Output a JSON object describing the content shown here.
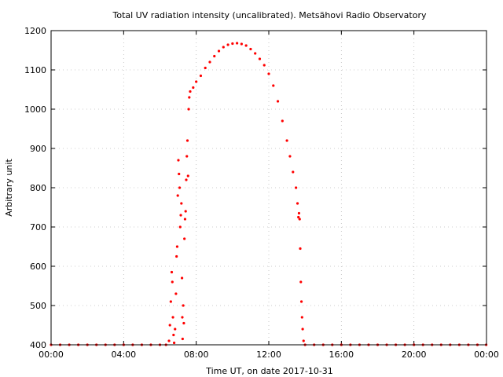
{
  "chart_data": {
    "type": "scatter",
    "title": "Total UV radiation intensity (uncalibrated). Metsähovi Radio Observatory",
    "xlabel": "Time UT, on date 2017-10-31",
    "ylabel": "Arbitrary unit",
    "xlim": [
      "00:00",
      "24:00"
    ],
    "ylim": [
      400,
      1200
    ],
    "x_ticks": [
      "00:00",
      "04:00",
      "08:00",
      "12:00",
      "16:00",
      "20:00",
      "00:00"
    ],
    "y_ticks": [
      400,
      500,
      600,
      700,
      800,
      900,
      1000,
      1100,
      1200
    ],
    "grid": true,
    "marker_color": "#ff0000",
    "series": [
      {
        "points": [
          [
            "00:00",
            400
          ],
          [
            "00:30",
            400
          ],
          [
            "01:00",
            400
          ],
          [
            "01:30",
            400
          ],
          [
            "02:00",
            400
          ],
          [
            "02:30",
            400
          ],
          [
            "03:00",
            400
          ],
          [
            "03:30",
            400
          ],
          [
            "04:00",
            400
          ],
          [
            "04:30",
            400
          ],
          [
            "05:00",
            400
          ],
          [
            "05:30",
            400
          ],
          [
            "06:00",
            400
          ],
          [
            "06:20",
            400
          ],
          [
            "06:30",
            410
          ],
          [
            "06:33",
            450
          ],
          [
            "06:36",
            510
          ],
          [
            "06:39",
            585
          ],
          [
            "06:41",
            560
          ],
          [
            "06:43",
            470
          ],
          [
            "06:45",
            425
          ],
          [
            "06:47",
            405
          ],
          [
            "06:50",
            440
          ],
          [
            "06:53",
            530
          ],
          [
            "06:55",
            625
          ],
          [
            "06:57",
            650
          ],
          [
            "06:59",
            780
          ],
          [
            "07:01",
            870
          ],
          [
            "07:03",
            835
          ],
          [
            "07:05",
            800
          ],
          [
            "07:07",
            700
          ],
          [
            "07:09",
            730
          ],
          [
            "07:11",
            760
          ],
          [
            "07:13",
            570
          ],
          [
            "07:14",
            470
          ],
          [
            "07:15",
            415
          ],
          [
            "07:17",
            500
          ],
          [
            "07:19",
            455
          ],
          [
            "07:21",
            670
          ],
          [
            "07:23",
            720
          ],
          [
            "07:25",
            740
          ],
          [
            "07:27",
            820
          ],
          [
            "07:29",
            880
          ],
          [
            "07:31",
            920
          ],
          [
            "07:33",
            830
          ],
          [
            "07:35",
            1000
          ],
          [
            "07:37",
            1030
          ],
          [
            "07:40",
            1045
          ],
          [
            "07:50",
            1055
          ],
          [
            "08:00",
            1070
          ],
          [
            "08:15",
            1085
          ],
          [
            "08:30",
            1105
          ],
          [
            "08:45",
            1120
          ],
          [
            "09:00",
            1135
          ],
          [
            "09:15",
            1148
          ],
          [
            "09:30",
            1158
          ],
          [
            "09:45",
            1164
          ],
          [
            "10:00",
            1167
          ],
          [
            "10:15",
            1168
          ],
          [
            "10:30",
            1166
          ],
          [
            "10:45",
            1162
          ],
          [
            "11:00",
            1153
          ],
          [
            "11:15",
            1142
          ],
          [
            "11:30",
            1128
          ],
          [
            "11:45",
            1112
          ],
          [
            "12:00",
            1090
          ],
          [
            "12:15",
            1060
          ],
          [
            "12:30",
            1020
          ],
          [
            "12:45",
            970
          ],
          [
            "13:00",
            920
          ],
          [
            "13:10",
            880
          ],
          [
            "13:20",
            840
          ],
          [
            "13:30",
            800
          ],
          [
            "13:35",
            760
          ],
          [
            "13:38",
            725
          ],
          [
            "13:40",
            735
          ],
          [
            "13:42",
            720
          ],
          [
            "13:44",
            645
          ],
          [
            "13:46",
            560
          ],
          [
            "13:48",
            510
          ],
          [
            "13:50",
            470
          ],
          [
            "13:52",
            440
          ],
          [
            "13:55",
            410
          ],
          [
            "14:00",
            400
          ],
          [
            "14:30",
            400
          ],
          [
            "15:00",
            400
          ],
          [
            "15:30",
            400
          ],
          [
            "16:00",
            400
          ],
          [
            "16:30",
            400
          ],
          [
            "17:00",
            400
          ],
          [
            "17:30",
            400
          ],
          [
            "18:00",
            400
          ],
          [
            "18:30",
            400
          ],
          [
            "19:00",
            400
          ],
          [
            "19:30",
            400
          ],
          [
            "20:00",
            400
          ],
          [
            "20:30",
            400
          ],
          [
            "21:00",
            400
          ],
          [
            "21:30",
            400
          ],
          [
            "22:00",
            400
          ],
          [
            "22:30",
            400
          ],
          [
            "23:00",
            400
          ],
          [
            "23:30",
            400
          ],
          [
            "23:59",
            400
          ]
        ]
      }
    ]
  }
}
